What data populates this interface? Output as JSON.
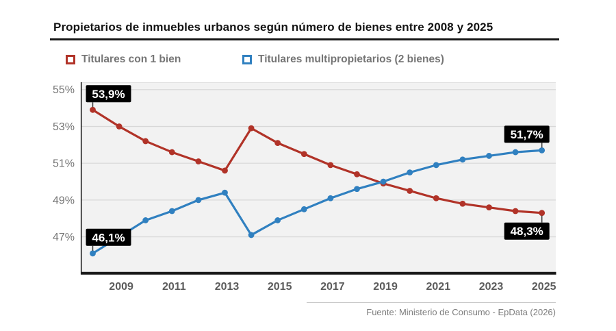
{
  "header": {
    "title": "Propietarios de inmuebles urbanos según número de bienes entre 2008 y 2025"
  },
  "footer": {
    "source": "Fuente: Ministerio de Consumo - EpData (2026)"
  },
  "chart_data": {
    "type": "line",
    "title": "Propietarios de inmuebles urbanos según número de bienes entre 2008 y 2025",
    "x": [
      2008,
      2009,
      2010,
      2011,
      2012,
      2013,
      2014,
      2015,
      2016,
      2017,
      2018,
      2019,
      2020,
      2021,
      2022,
      2023,
      2024,
      2025
    ],
    "x_tick_labels": [
      "2009",
      "2011",
      "2013",
      "2015",
      "2017",
      "2019",
      "2021",
      "2023",
      "2025"
    ],
    "y_ticks": [
      {
        "label": "55%",
        "value": 55
      },
      {
        "label": "53%",
        "value": 53
      },
      {
        "label": "51%",
        "value": 51
      },
      {
        "label": "49%",
        "value": 49
      },
      {
        "label": "47%",
        "value": 47
      }
    ],
    "ylim": [
      45.05,
      55.4
    ],
    "grid": "horizontal",
    "legend_position": "top",
    "series": [
      {
        "name": "Titulares con 1 bien",
        "color": "#b13328",
        "values": [
          53.9,
          53.0,
          52.2,
          51.6,
          51.1,
          50.6,
          52.9,
          52.1,
          51.5,
          50.9,
          50.4,
          49.9,
          49.5,
          49.1,
          48.8,
          48.6,
          48.4,
          48.3
        ]
      },
      {
        "name": "Titulares multipropietarios (2 bienes)",
        "color": "#3080c0",
        "values": [
          46.1,
          47.0,
          47.9,
          48.4,
          49.0,
          49.4,
          47.1,
          47.9,
          48.5,
          49.1,
          49.6,
          50.0,
          50.5,
          50.9,
          51.2,
          51.4,
          51.6,
          51.7
        ]
      }
    ],
    "annotations": [
      {
        "series": 0,
        "year": 2008,
        "text": "53,9%",
        "position": "above",
        "align": "left"
      },
      {
        "series": 1,
        "year": 2008,
        "text": "46,1%",
        "position": "above",
        "align": "left"
      },
      {
        "series": 1,
        "year": 2025,
        "text": "51,7%",
        "position": "above",
        "align": "right"
      },
      {
        "series": 0,
        "year": 2025,
        "text": "48,3%",
        "position": "below",
        "align": "right"
      }
    ],
    "colors": {
      "plot_bg": "#f2f2f2",
      "gridline": "#d8d8d8",
      "axis": "#1a1a1a",
      "annotation_bg": "#000000",
      "annotation_text": "#ffffff",
      "y_tick_text": "#757575",
      "x_tick_text": "#5c5c5c"
    }
  }
}
